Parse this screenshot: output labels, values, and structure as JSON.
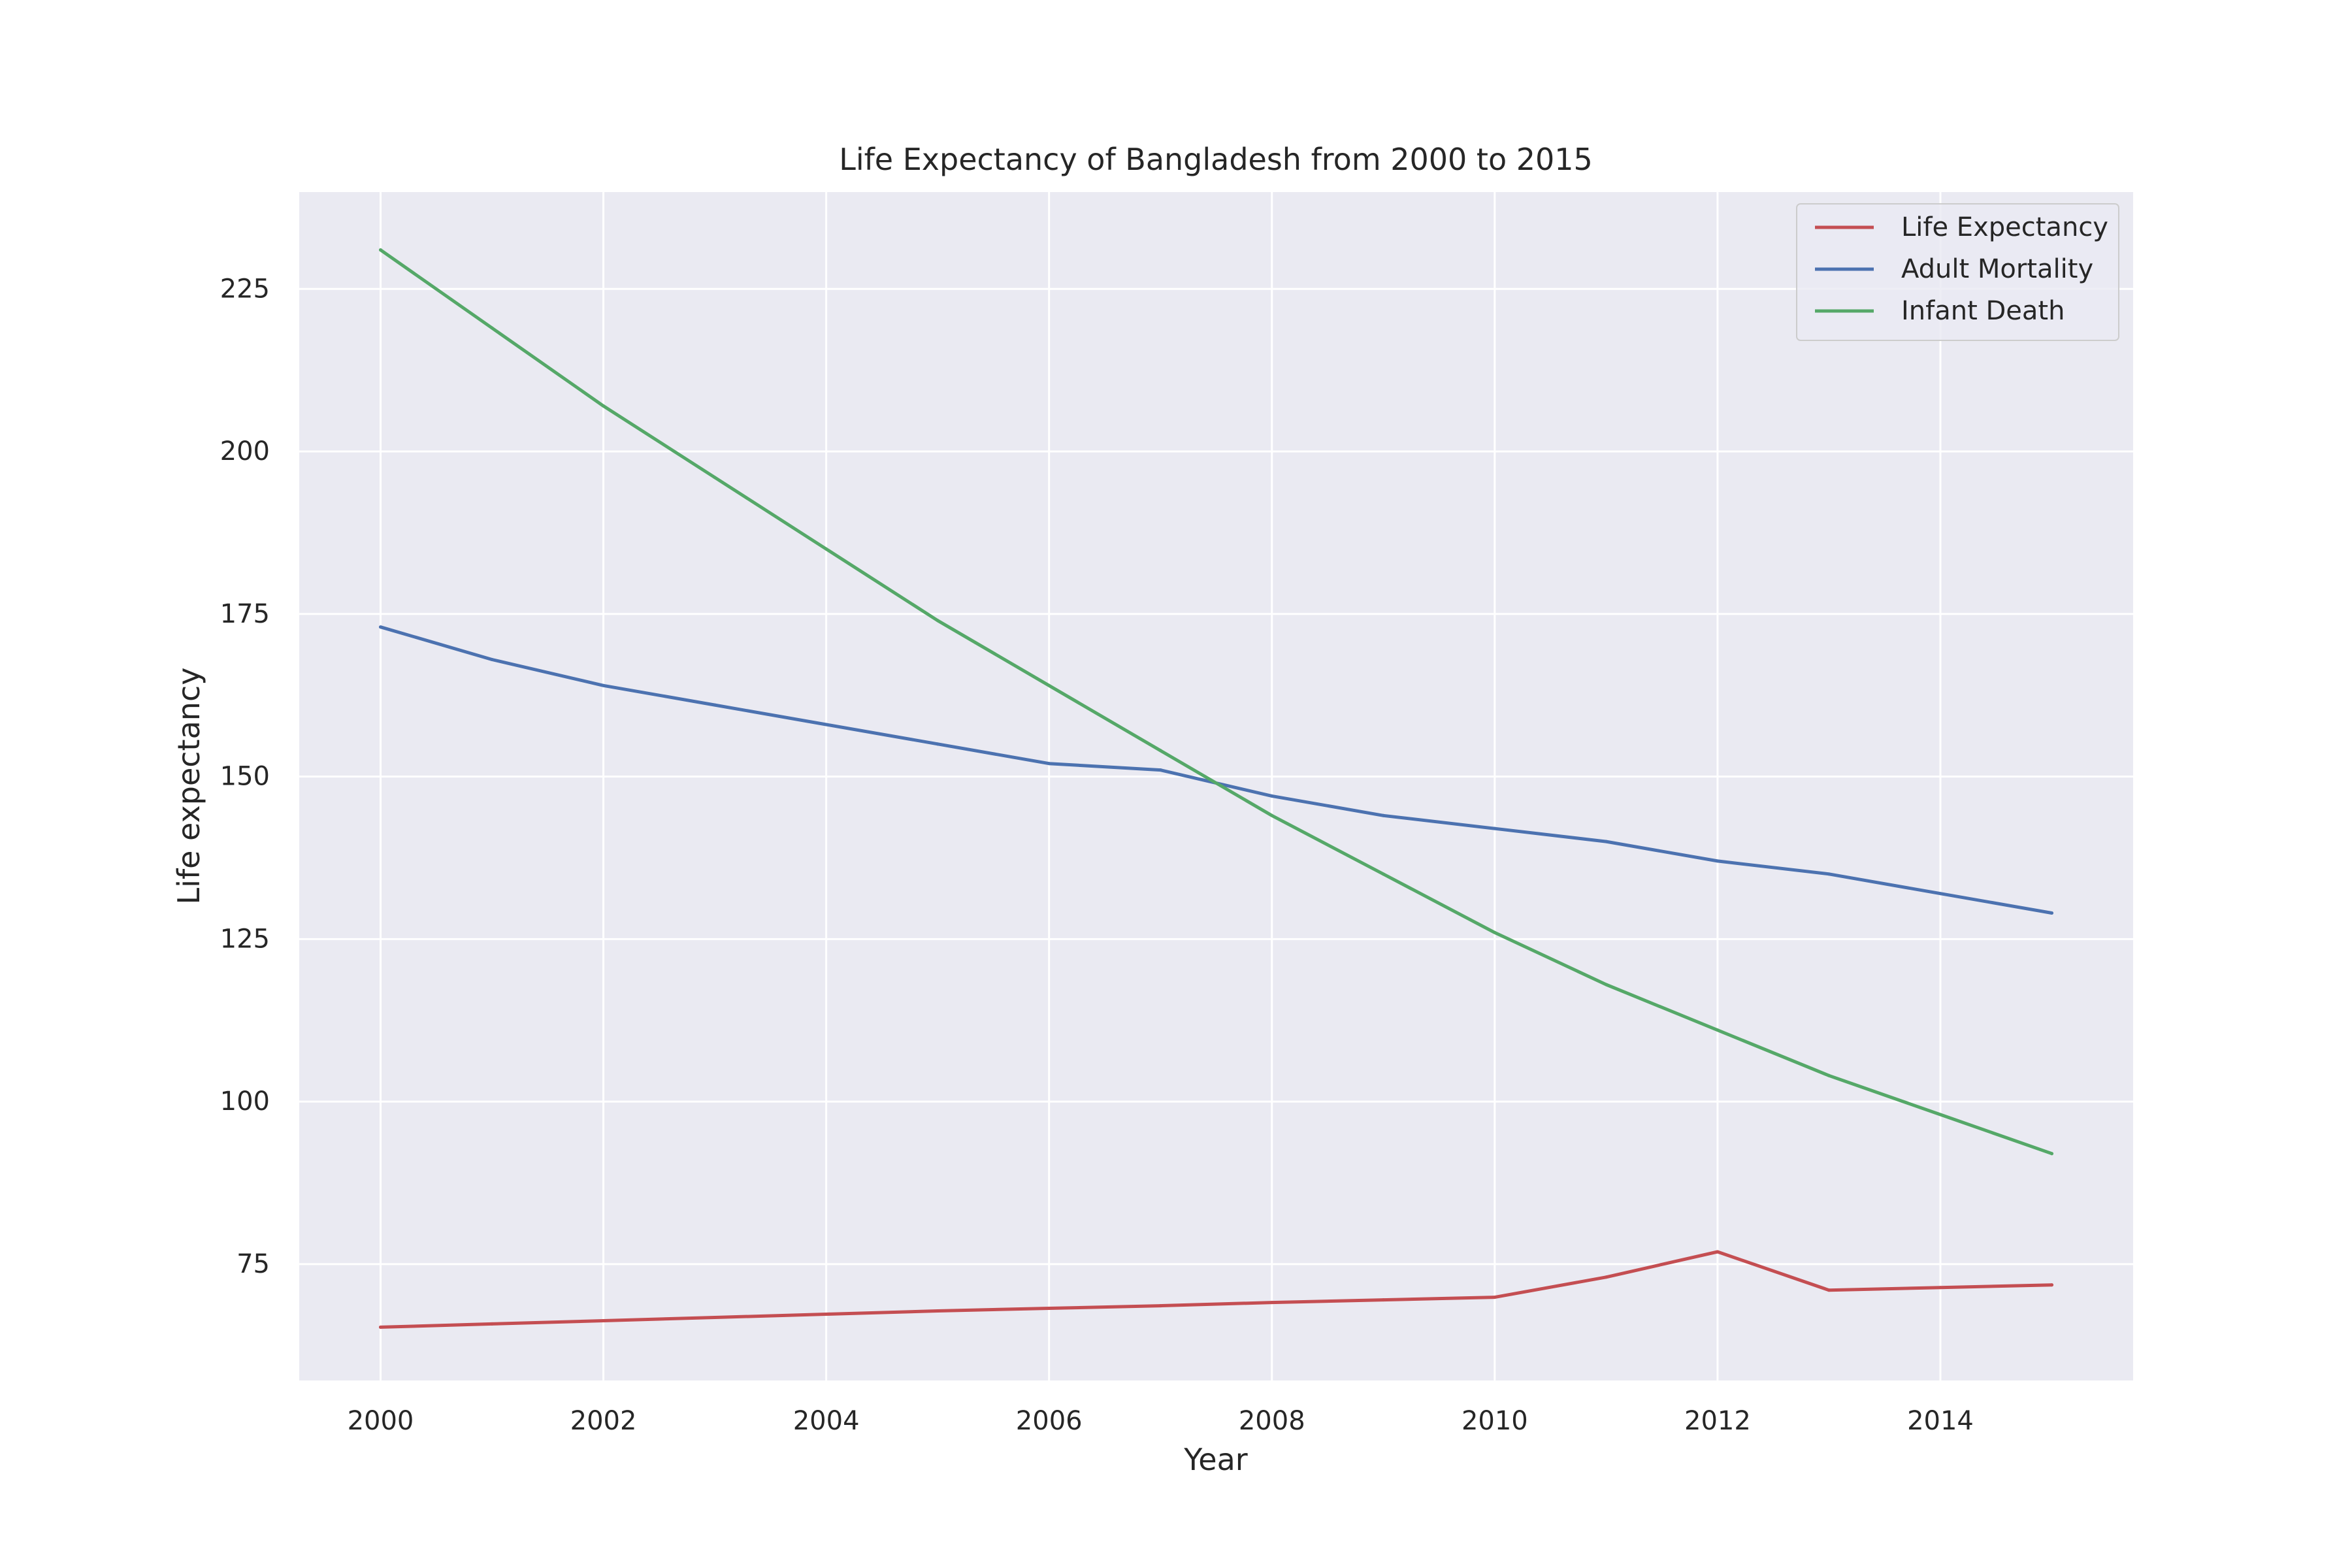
{
  "chart_data": {
    "type": "line",
    "title": "Life Expectancy of Bangladesh from 2000 to 2015",
    "xlabel": "Year",
    "ylabel": "Life expectancy",
    "x": [
      2000,
      2001,
      2002,
      2003,
      2004,
      2005,
      2006,
      2007,
      2008,
      2009,
      2010,
      2011,
      2012,
      2013,
      2014,
      2015
    ],
    "xlim": [
      1999.27,
      2015.73
    ],
    "ylim": [
      57.1,
      239.9
    ],
    "xticks": [
      2000,
      2002,
      2004,
      2006,
      2008,
      2010,
      2012,
      2014
    ],
    "yticks": [
      75,
      100,
      125,
      150,
      175,
      200,
      225
    ],
    "grid": true,
    "legend": "top-right",
    "background": "#eaeaf2",
    "grid_color": "#ffffff",
    "series": [
      {
        "name": "Life Expectancy",
        "color": "#c44e52",
        "values": [
          65.3,
          65.8,
          66.3,
          66.8,
          67.3,
          67.8,
          68.2,
          68.6,
          69.1,
          69.5,
          69.9,
          73.0,
          76.9,
          71.0,
          71.4,
          71.8
        ]
      },
      {
        "name": "Adult Mortality",
        "color": "#4c72b0",
        "values": [
          173,
          168,
          164,
          161,
          158,
          155,
          152,
          151,
          147,
          144,
          142,
          140,
          137,
          135,
          132,
          129
        ]
      },
      {
        "name": "Infant Death",
        "color": "#55a868",
        "values": [
          231,
          219,
          207,
          196,
          185,
          174,
          164,
          154,
          144,
          135,
          126,
          118,
          111,
          104,
          98,
          92
        ]
      }
    ]
  }
}
